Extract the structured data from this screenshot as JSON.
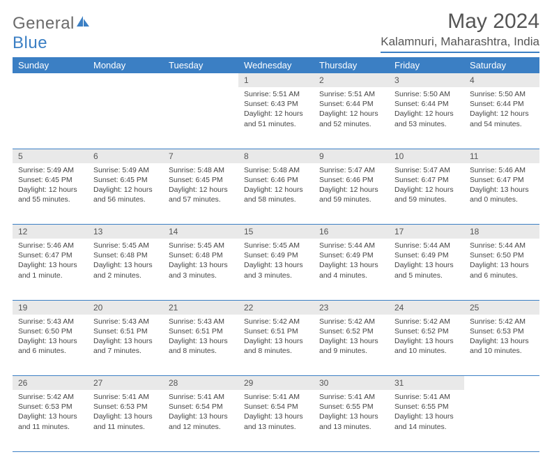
{
  "brand": {
    "general": "General",
    "blue": "Blue"
  },
  "title": "May 2024",
  "location": "Kalamnuri, Maharashtra, India",
  "colors": {
    "header_bg": "#3b7fc4",
    "header_fg": "#ffffff",
    "daynum_bg": "#e9e9e9",
    "text": "#444444"
  },
  "daysOfWeek": [
    "Sunday",
    "Monday",
    "Tuesday",
    "Wednesday",
    "Thursday",
    "Friday",
    "Saturday"
  ],
  "weeks": [
    [
      null,
      null,
      null,
      {
        "n": "1",
        "sr": "5:51 AM",
        "ss": "6:43 PM",
        "d": "12 hours and 51 minutes."
      },
      {
        "n": "2",
        "sr": "5:51 AM",
        "ss": "6:44 PM",
        "d": "12 hours and 52 minutes."
      },
      {
        "n": "3",
        "sr": "5:50 AM",
        "ss": "6:44 PM",
        "d": "12 hours and 53 minutes."
      },
      {
        "n": "4",
        "sr": "5:50 AM",
        "ss": "6:44 PM",
        "d": "12 hours and 54 minutes."
      }
    ],
    [
      {
        "n": "5",
        "sr": "5:49 AM",
        "ss": "6:45 PM",
        "d": "12 hours and 55 minutes."
      },
      {
        "n": "6",
        "sr": "5:49 AM",
        "ss": "6:45 PM",
        "d": "12 hours and 56 minutes."
      },
      {
        "n": "7",
        "sr": "5:48 AM",
        "ss": "6:45 PM",
        "d": "12 hours and 57 minutes."
      },
      {
        "n": "8",
        "sr": "5:48 AM",
        "ss": "6:46 PM",
        "d": "12 hours and 58 minutes."
      },
      {
        "n": "9",
        "sr": "5:47 AM",
        "ss": "6:46 PM",
        "d": "12 hours and 59 minutes."
      },
      {
        "n": "10",
        "sr": "5:47 AM",
        "ss": "6:47 PM",
        "d": "12 hours and 59 minutes."
      },
      {
        "n": "11",
        "sr": "5:46 AM",
        "ss": "6:47 PM",
        "d": "13 hours and 0 minutes."
      }
    ],
    [
      {
        "n": "12",
        "sr": "5:46 AM",
        "ss": "6:47 PM",
        "d": "13 hours and 1 minute."
      },
      {
        "n": "13",
        "sr": "5:45 AM",
        "ss": "6:48 PM",
        "d": "13 hours and 2 minutes."
      },
      {
        "n": "14",
        "sr": "5:45 AM",
        "ss": "6:48 PM",
        "d": "13 hours and 3 minutes."
      },
      {
        "n": "15",
        "sr": "5:45 AM",
        "ss": "6:49 PM",
        "d": "13 hours and 3 minutes."
      },
      {
        "n": "16",
        "sr": "5:44 AM",
        "ss": "6:49 PM",
        "d": "13 hours and 4 minutes."
      },
      {
        "n": "17",
        "sr": "5:44 AM",
        "ss": "6:49 PM",
        "d": "13 hours and 5 minutes."
      },
      {
        "n": "18",
        "sr": "5:44 AM",
        "ss": "6:50 PM",
        "d": "13 hours and 6 minutes."
      }
    ],
    [
      {
        "n": "19",
        "sr": "5:43 AM",
        "ss": "6:50 PM",
        "d": "13 hours and 6 minutes."
      },
      {
        "n": "20",
        "sr": "5:43 AM",
        "ss": "6:51 PM",
        "d": "13 hours and 7 minutes."
      },
      {
        "n": "21",
        "sr": "5:43 AM",
        "ss": "6:51 PM",
        "d": "13 hours and 8 minutes."
      },
      {
        "n": "22",
        "sr": "5:42 AM",
        "ss": "6:51 PM",
        "d": "13 hours and 8 minutes."
      },
      {
        "n": "23",
        "sr": "5:42 AM",
        "ss": "6:52 PM",
        "d": "13 hours and 9 minutes."
      },
      {
        "n": "24",
        "sr": "5:42 AM",
        "ss": "6:52 PM",
        "d": "13 hours and 10 minutes."
      },
      {
        "n": "25",
        "sr": "5:42 AM",
        "ss": "6:53 PM",
        "d": "13 hours and 10 minutes."
      }
    ],
    [
      {
        "n": "26",
        "sr": "5:42 AM",
        "ss": "6:53 PM",
        "d": "13 hours and 11 minutes."
      },
      {
        "n": "27",
        "sr": "5:41 AM",
        "ss": "6:53 PM",
        "d": "13 hours and 11 minutes."
      },
      {
        "n": "28",
        "sr": "5:41 AM",
        "ss": "6:54 PM",
        "d": "13 hours and 12 minutes."
      },
      {
        "n": "29",
        "sr": "5:41 AM",
        "ss": "6:54 PM",
        "d": "13 hours and 13 minutes."
      },
      {
        "n": "30",
        "sr": "5:41 AM",
        "ss": "6:55 PM",
        "d": "13 hours and 13 minutes."
      },
      {
        "n": "31",
        "sr": "5:41 AM",
        "ss": "6:55 PM",
        "d": "13 hours and 14 minutes."
      },
      null
    ]
  ],
  "labels": {
    "sunrise": "Sunrise:",
    "sunset": "Sunset:",
    "daylight": "Daylight:"
  }
}
